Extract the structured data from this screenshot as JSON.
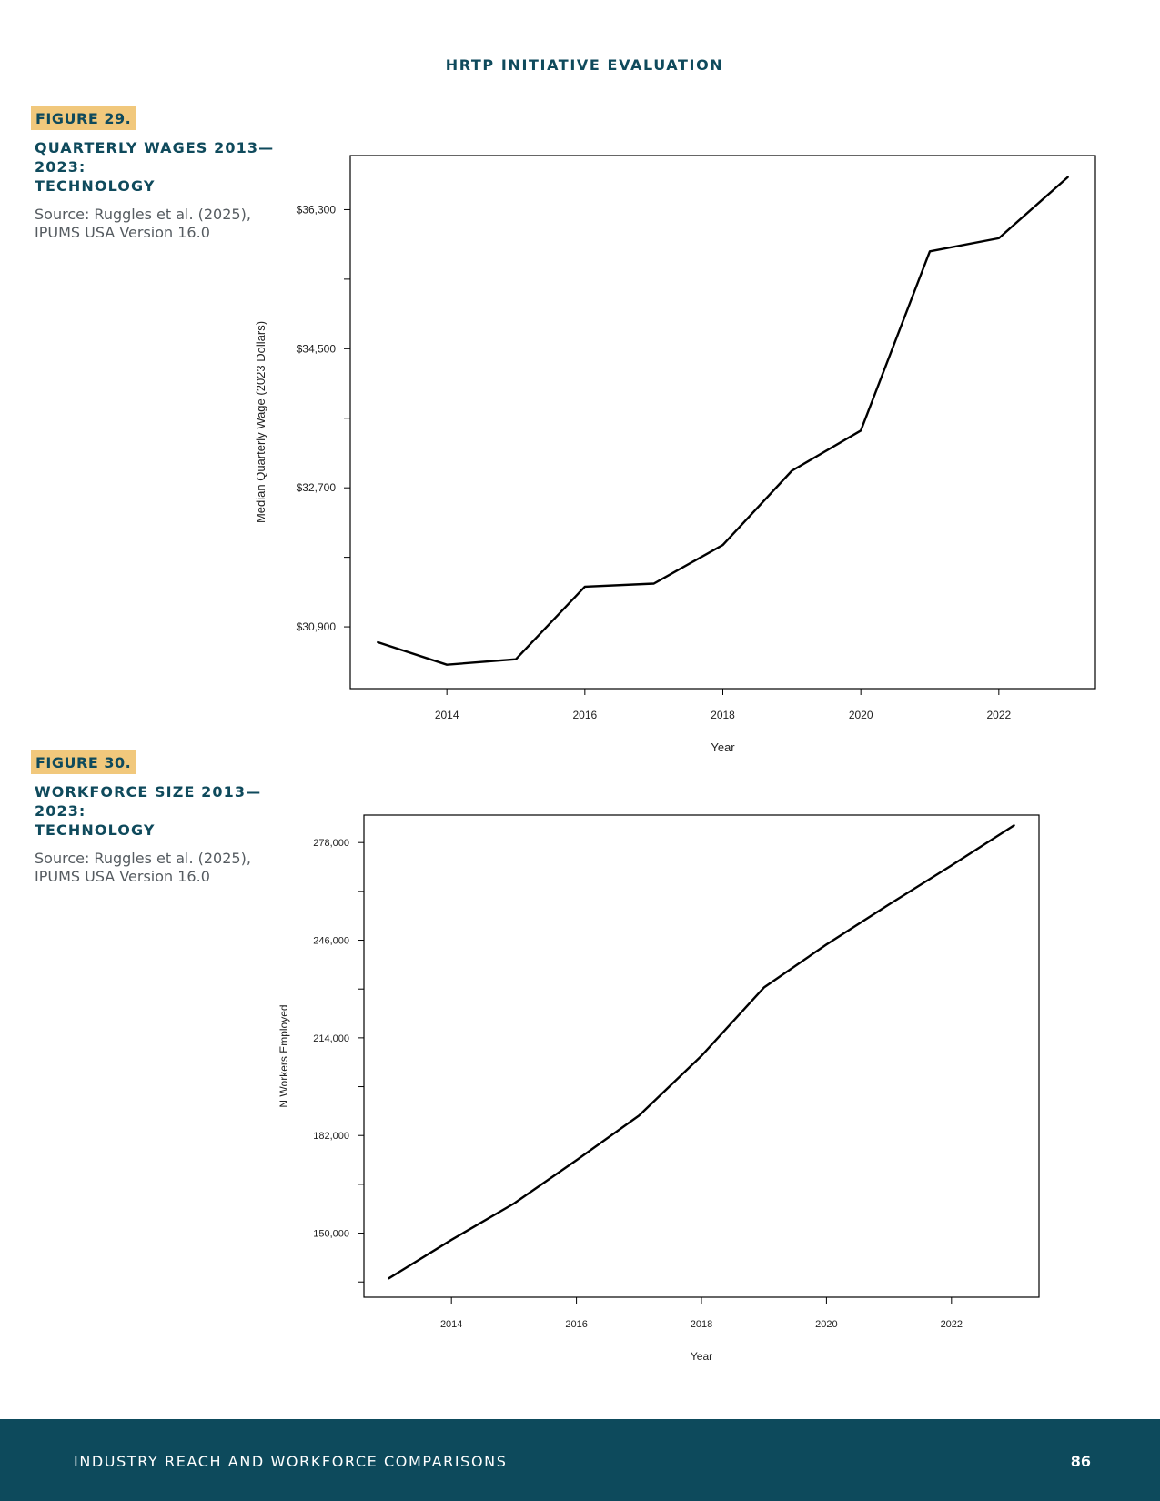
{
  "header": {
    "title": "HRTP INITIATIVE EVALUATION"
  },
  "figures": [
    {
      "tag": "FIGURE 29.",
      "title": "QUARTERLY WAGES 2013—2023:\nTECHNOLOGY",
      "source": "Source: Ruggles et al. (2025),\nIPUMS USA Version 16.0"
    },
    {
      "tag": "FIGURE 30.",
      "title": "WORKFORCE SIZE 2013—2023:\nTECHNOLOGY",
      "source": "Source: Ruggles et al. (2025),\nIPUMS USA Version 16.0"
    }
  ],
  "chart_data": [
    {
      "type": "line",
      "title": "",
      "xlabel": "Year",
      "ylabel": "Median Quarterly Wage (2023 Dollars)",
      "x": [
        2013,
        2014,
        2015,
        2016,
        2017,
        2018,
        2019,
        2020,
        2021,
        2022,
        2023
      ],
      "series": [
        {
          "values": [
            30700,
            30410,
            30480,
            31420,
            31460,
            31960,
            32920,
            33440,
            35760,
            35930,
            36720
          ]
        }
      ],
      "xlim": [
        2012.6,
        2023.4
      ],
      "ylim": [
        30100,
        37000
      ],
      "xticks": [
        2014,
        2016,
        2018,
        2020,
        2022
      ],
      "xtick_labels": [
        "2014",
        "2016",
        "2018",
        "2020",
        "2022"
      ],
      "yticks": [
        30900,
        31800,
        32700,
        33600,
        34500,
        35400,
        36300
      ],
      "ytick_labels": [
        "$30,900",
        "",
        "$32,700",
        "",
        "$34,500",
        "",
        "$36,300"
      ],
      "grid": false,
      "line_color": "#000000"
    },
    {
      "type": "line",
      "title": "",
      "xlabel": "Year",
      "ylabel": "N Workers Employed",
      "x": [
        2013,
        2014,
        2015,
        2016,
        2017,
        2018,
        2019,
        2020,
        2021,
        2022,
        2023
      ],
      "series": [
        {
          "values": [
            135200,
            147800,
            159700,
            173900,
            188500,
            208100,
            230500,
            244600,
            257700,
            270500,
            283600
          ]
        }
      ],
      "xlim": [
        2012.6,
        2023.4
      ],
      "ylim": [
        129000,
        287000
      ],
      "xticks": [
        2014,
        2016,
        2018,
        2020,
        2022
      ],
      "xtick_labels": [
        "2014",
        "2016",
        "2018",
        "2020",
        "2022"
      ],
      "yticks": [
        134000,
        150000,
        166000,
        182000,
        198000,
        214000,
        230000,
        246000,
        262000,
        278000
      ],
      "ytick_labels": [
        "",
        "150,000",
        "",
        "182,000",
        "",
        "214,000",
        "",
        "246,000",
        "",
        "278,000"
      ],
      "grid": false,
      "line_color": "#000000"
    }
  ],
  "footer": {
    "section": "INDUSTRY REACH AND WORKFORCE COMPARISONS",
    "page_number": "86"
  }
}
